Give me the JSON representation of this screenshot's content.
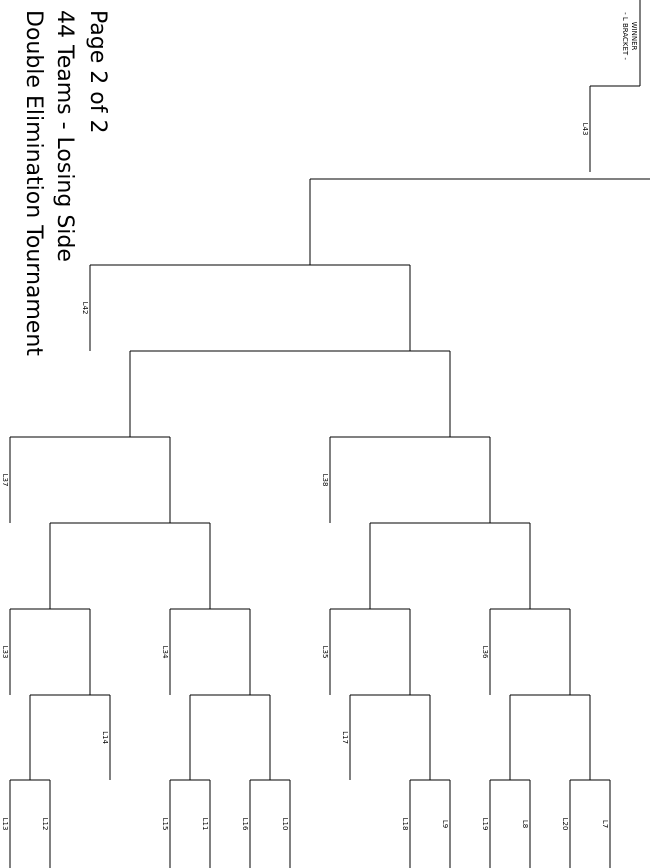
{
  "header": {
    "lines": [
      "Page 2 of 2",
      "44 Teams - Losing Side",
      "Double Elimination Tournament"
    ]
  },
  "winner": {
    "lines": [
      "WINNER",
      "- L BRACKET -"
    ]
  },
  "labels": [
    "L13",
    "L12",
    "L15",
    "L11",
    "L16",
    "L10",
    "L18",
    "L9",
    "L19",
    "L8",
    "L20",
    "L7",
    "L14",
    "L17",
    "L33",
    "L34",
    "L35",
    "L36",
    "L37",
    "L38",
    "L42",
    "L43"
  ]
}
